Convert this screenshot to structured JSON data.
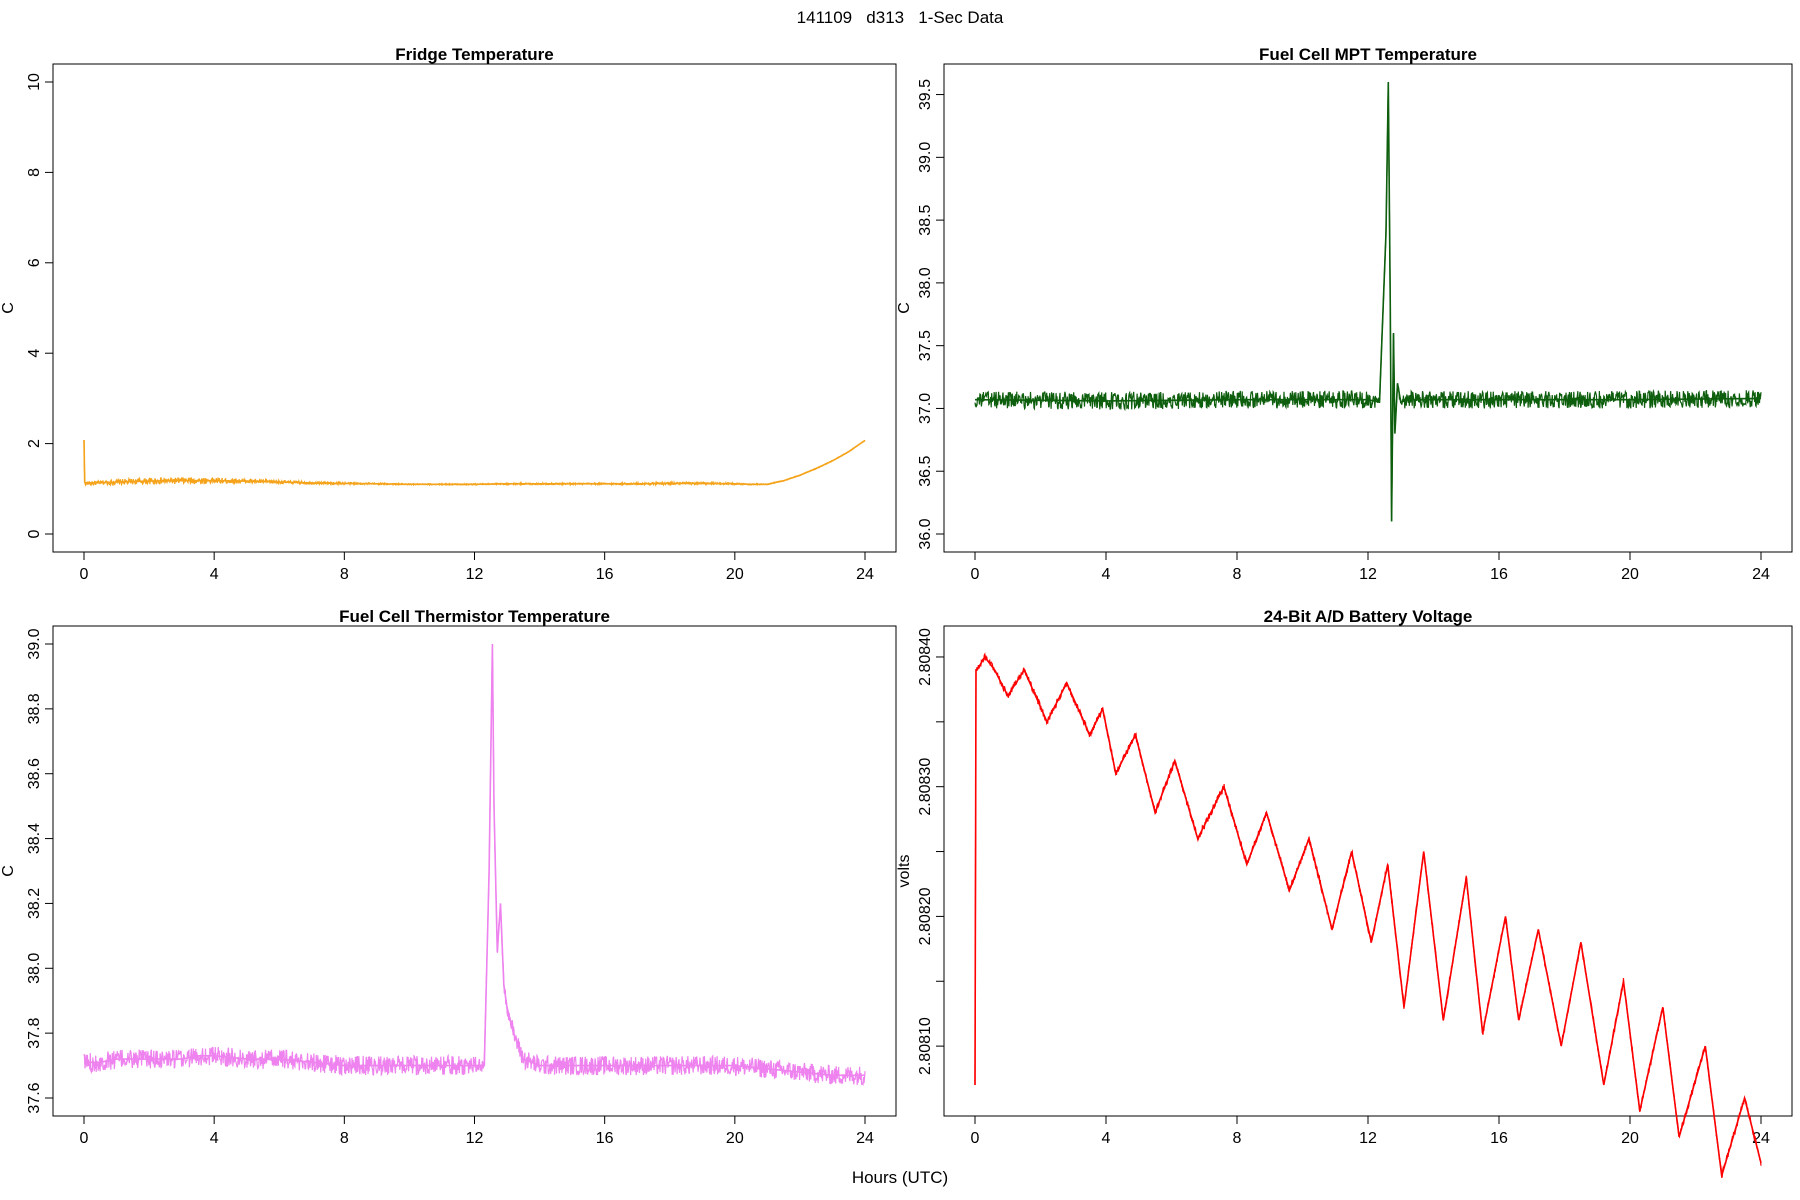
{
  "page": {
    "main_title": "141109   d313   1-Sec Data",
    "x_label": "Hours (UTC)"
  },
  "chart_data": [
    {
      "type": "line",
      "title": "Fridge Temperature",
      "xlabel": "Hours (UTC)",
      "ylabel": "C",
      "color": "#f5a31a",
      "xlim": [
        0,
        24
      ],
      "ylim": [
        0,
        10
      ],
      "x_ticks": [
        0,
        4,
        8,
        12,
        16,
        20,
        24
      ],
      "y_ticks": [
        0,
        2,
        4,
        6,
        8,
        10
      ],
      "y_tick_labels": [
        "0",
        "2",
        "4",
        "6",
        "8",
        "10"
      ],
      "series": [
        {
          "name": "Fridge Temperature",
          "x": [
            0,
            0.02,
            0.05,
            1,
            2,
            3,
            4,
            5,
            6,
            7,
            8,
            9,
            10,
            11,
            12,
            13,
            14,
            15,
            16,
            17,
            18,
            19,
            20,
            20.5,
            21,
            21.5,
            22,
            22.5,
            23,
            23.5,
            24
          ],
          "y": [
            2.08,
            1.15,
            1.12,
            1.15,
            1.17,
            1.18,
            1.18,
            1.17,
            1.15,
            1.13,
            1.12,
            1.11,
            1.1,
            1.1,
            1.1,
            1.11,
            1.11,
            1.11,
            1.11,
            1.11,
            1.12,
            1.12,
            1.11,
            1.1,
            1.1,
            1.18,
            1.3,
            1.45,
            1.62,
            1.82,
            2.07
          ],
          "noise": [
            0,
            0.08,
            0.08,
            0.12,
            0.14,
            0.15,
            0.14,
            0.1,
            0.08,
            0.06,
            0.05,
            0.04,
            0.03,
            0.03,
            0.03,
            0.04,
            0.04,
            0.04,
            0.04,
            0.05,
            0.06,
            0.05,
            0.04,
            0.03,
            0.02,
            0.02,
            0.02,
            0.02,
            0.02,
            0.02,
            0.02
          ]
        }
      ]
    },
    {
      "type": "line",
      "title": "Fuel Cell MPT Temperature",
      "xlabel": "Hours (UTC)",
      "ylabel": "C",
      "color": "#0d5e0d",
      "xlim": [
        0,
        24
      ],
      "ylim": [
        36.0,
        39.6
      ],
      "x_ticks": [
        0,
        4,
        8,
        12,
        16,
        20,
        24
      ],
      "y_ticks": [
        36.0,
        36.5,
        37.0,
        37.5,
        38.0,
        38.5,
        39.0,
        39.5
      ],
      "y_tick_labels": [
        "36.0",
        "36.5",
        "37.0",
        "37.5",
        "38.0",
        "38.5",
        "39.0",
        "39.5"
      ],
      "series": [
        {
          "name": "Fuel Cell MPT Temperature",
          "x": [
            0,
            4,
            8,
            12,
            12.35,
            12.55,
            12.62,
            12.68,
            12.72,
            12.78,
            12.82,
            12.9,
            13.0,
            13.2,
            16,
            20,
            24
          ],
          "y": [
            37.07,
            37.06,
            37.07,
            37.07,
            37.05,
            38.4,
            39.6,
            37.8,
            36.1,
            37.6,
            36.8,
            37.2,
            37.05,
            37.07,
            37.07,
            37.07,
            37.08
          ],
          "noise": [
            0.14,
            0.14,
            0.14,
            0.14,
            0.1,
            0,
            0,
            0,
            0,
            0,
            0,
            0,
            0.1,
            0.14,
            0.14,
            0.14,
            0.14
          ]
        }
      ]
    },
    {
      "type": "line",
      "title": "Fuel Cell Thermistor Temperature",
      "xlabel": "Hours (UTC)",
      "ylabel": "C",
      "color": "#ee82ee",
      "xlim": [
        0,
        24
      ],
      "ylim": [
        37.6,
        39.0
      ],
      "x_ticks": [
        0,
        4,
        8,
        12,
        16,
        20,
        24
      ],
      "y_ticks": [
        37.6,
        37.8,
        38.0,
        38.2,
        38.4,
        38.6,
        38.8,
        39.0
      ],
      "y_tick_labels": [
        "37.6",
        "37.8",
        "38.0",
        "38.2",
        "38.4",
        "38.6",
        "38.8",
        "39.0"
      ],
      "series": [
        {
          "name": "Fuel Cell Thermistor Temperature",
          "x": [
            0,
            0.5,
            1,
            2,
            3,
            3.5,
            4,
            5,
            6,
            7,
            8,
            9,
            10,
            11,
            12,
            12.3,
            12.45,
            12.55,
            12.6,
            12.7,
            12.8,
            12.9,
            13.0,
            13.2,
            13.5,
            14,
            15,
            16,
            17,
            18,
            19,
            20,
            21,
            22,
            23,
            24
          ],
          "y": [
            37.71,
            37.71,
            37.72,
            37.72,
            37.72,
            37.73,
            37.73,
            37.72,
            37.72,
            37.71,
            37.7,
            37.7,
            37.7,
            37.7,
            37.7,
            37.7,
            38.3,
            39.0,
            38.5,
            38.05,
            38.2,
            37.95,
            37.88,
            37.8,
            37.72,
            37.7,
            37.7,
            37.7,
            37.7,
            37.7,
            37.7,
            37.7,
            37.69,
            37.68,
            37.67,
            37.67
          ],
          "noise": [
            0.06,
            0.06,
            0.06,
            0.06,
            0.06,
            0.06,
            0.06,
            0.06,
            0.06,
            0.06,
            0.06,
            0.06,
            0.06,
            0.06,
            0.06,
            0.04,
            0,
            0,
            0,
            0.02,
            0.04,
            0.04,
            0.04,
            0.05,
            0.06,
            0.06,
            0.06,
            0.06,
            0.06,
            0.06,
            0.06,
            0.06,
            0.06,
            0.06,
            0.06,
            0.06
          ]
        }
      ]
    },
    {
      "type": "line",
      "title": "24-Bit A/D Battery Voltage",
      "xlabel": "Hours (UTC)",
      "ylabel": "volts",
      "color": "#ff0000",
      "xlim": [
        0,
        24
      ],
      "ylim": [
        2.80806,
        2.80841
      ],
      "x_ticks": [
        0,
        4,
        8,
        12,
        16,
        20,
        24
      ],
      "y_ticks": [
        2.8081,
        2.80815,
        2.8082,
        2.80825,
        2.8083,
        2.80835,
        2.8084
      ],
      "y_tick_labels": [
        "2.80810",
        "",
        "2.80820",
        "",
        "2.80830",
        "",
        "2.80840"
      ],
      "series": [
        {
          "name": "24-Bit A/D Battery Voltage",
          "x": [
            0,
            0.03,
            0.06,
            0.3,
            0.6,
            1.0,
            1.5,
            2.2,
            2.8,
            3.5,
            3.9,
            4.3,
            4.9,
            5.5,
            6.1,
            6.8,
            7.6,
            8.3,
            8.9,
            9.6,
            10.2,
            10.9,
            11.5,
            12.1,
            12.6,
            13.1,
            13.7,
            14.3,
            15.0,
            15.5,
            16.2,
            16.6,
            17.2,
            17.9,
            18.5,
            19.2,
            19.8,
            20.3,
            21.0,
            21.5,
            22.3,
            22.8,
            23.5,
            24.0
          ],
          "y": [
            2.80807,
            2.80839,
            2.80839,
            2.8084,
            2.80839,
            2.80837,
            2.80839,
            2.80835,
            2.80838,
            2.80834,
            2.80836,
            2.80831,
            2.80834,
            2.80828,
            2.80832,
            2.80826,
            2.8083,
            2.80824,
            2.80828,
            2.80822,
            2.80826,
            2.80819,
            2.80825,
            2.80818,
            2.80824,
            2.80813,
            2.80825,
            2.80812,
            2.80823,
            2.80811,
            2.8082,
            2.80812,
            2.80819,
            2.8081,
            2.80818,
            2.80807,
            2.80815,
            2.80805,
            2.80813,
            2.80803,
            2.8081,
            2.808,
            2.80806,
            2.80801
          ],
          "noise": [
            0,
            0,
            5e-06,
            5e-06,
            5e-06,
            5e-06,
            5e-06,
            5e-06,
            5e-06,
            5e-06,
            5e-06,
            5e-06,
            5e-06,
            5e-06,
            5e-06,
            5e-06,
            5e-06,
            5e-06,
            5e-06,
            5e-06,
            5e-06,
            5e-06,
            5e-06,
            5e-06,
            5e-06,
            5e-06,
            5e-06,
            5e-06,
            5e-06,
            5e-06,
            5e-06,
            5e-06,
            5e-06,
            5e-06,
            5e-06,
            5e-06,
            5e-06,
            5e-06,
            5e-06,
            5e-06,
            5e-06,
            5e-06,
            5e-06,
            5e-06
          ]
        }
      ]
    }
  ]
}
